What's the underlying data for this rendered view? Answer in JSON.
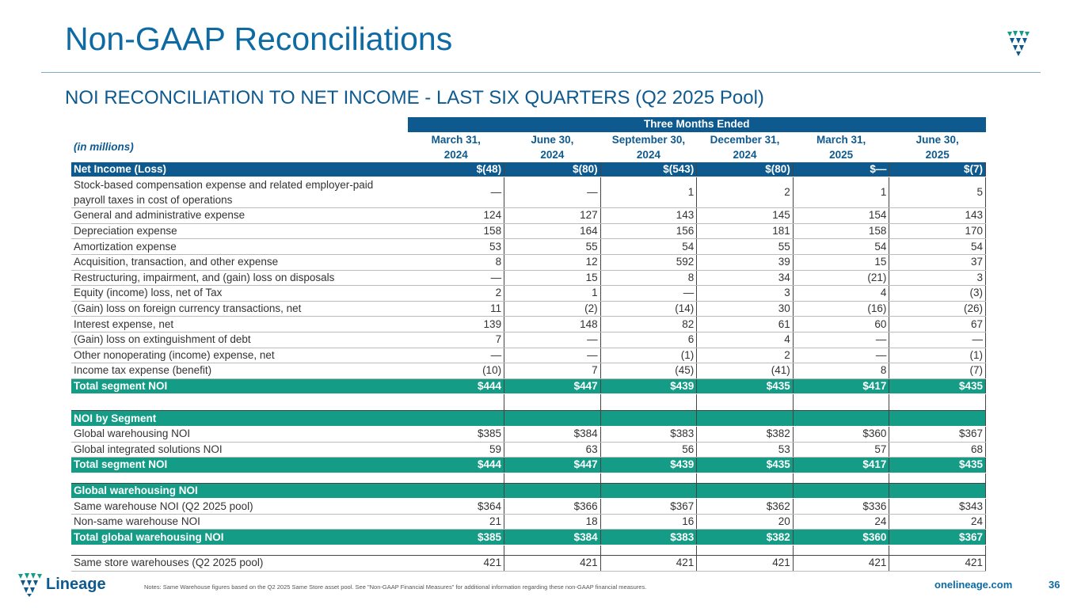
{
  "header": {
    "title": "Non-GAAP Reconciliations",
    "subtitle": "NOI RECONCILIATION TO NET INCOME - LAST SIX QUARTERS (Q2 2025 Pool)"
  },
  "table": {
    "group_header": "Three Months Ended",
    "unit_label": "(in millions)",
    "columns": [
      [
        "March 31,",
        "2024"
      ],
      [
        "June 30,",
        "2024"
      ],
      [
        "September 30,",
        "2024"
      ],
      [
        "December 31,",
        "2024"
      ],
      [
        "March 31,",
        "2025"
      ],
      [
        "June 30,",
        "2025"
      ]
    ],
    "blocks": [
      {
        "rows": [
          {
            "label": "Net Income (Loss)",
            "values": [
              "$(48)",
              "$(80)",
              "$(543)",
              "$(80)",
              "$—",
              "$(7)"
            ],
            "fill": "#0e5a8f"
          },
          {
            "label": "Stock-based compensation expense and related employer-paid payroll taxes in cost of operations",
            "values": [
              "—",
              "—",
              "1",
              "2",
              "1",
              "5"
            ]
          },
          {
            "label": "General and administrative expense",
            "values": [
              "124",
              "127",
              "143",
              "145",
              "154",
              "143"
            ]
          },
          {
            "label": "Depreciation expense",
            "values": [
              "158",
              "164",
              "156",
              "181",
              "158",
              "170"
            ]
          },
          {
            "label": "Amortization expense",
            "values": [
              "53",
              "55",
              "54",
              "55",
              "54",
              "54"
            ]
          },
          {
            "label": "Acquisition, transaction, and other expense",
            "values": [
              "8",
              "12",
              "592",
              "39",
              "15",
              "37"
            ]
          },
          {
            "label": "Restructuring, impairment, and (gain) loss on disposals",
            "values": [
              "—",
              "15",
              "8",
              "34",
              "(21)",
              "3"
            ]
          },
          {
            "label": "Equity (income) loss, net of Tax",
            "values": [
              "2",
              "1",
              "—",
              "3",
              "4",
              "(3)"
            ]
          },
          {
            "label": "(Gain) loss on foreign currency transactions, net",
            "values": [
              "11",
              "(2)",
              "(14)",
              "30",
              "(16)",
              "(26)"
            ]
          },
          {
            "label": "Interest expense, net",
            "values": [
              "139",
              "148",
              "82",
              "61",
              "60",
              "67"
            ]
          },
          {
            "label": "(Gain) loss on extinguishment of debt",
            "values": [
              "7",
              "—",
              "6",
              "4",
              "—",
              "—"
            ]
          },
          {
            "label": "Other nonoperating (income) expense, net",
            "values": [
              "—",
              "—",
              "(1)",
              "2",
              "—",
              "(1)"
            ]
          },
          {
            "label": "Income tax expense (benefit)",
            "values": [
              "(10)",
              "7",
              "(45)",
              "(41)",
              "8",
              "(7)"
            ]
          },
          {
            "label": "Total segment NOI",
            "values": [
              "$444",
              "$447",
              "$439",
              "$435",
              "$417",
              "$435"
            ],
            "fill": "#149c86"
          }
        ]
      },
      {
        "rows": [
          {
            "label": "NOI by Segment",
            "fill": "#149c86"
          },
          {
            "label": "Global warehousing NOI",
            "values": [
              "$385",
              "$384",
              "$383",
              "$382",
              "$360",
              "$367"
            ]
          },
          {
            "label": "Global integrated solutions NOI",
            "values": [
              "59",
              "63",
              "56",
              "53",
              "57",
              "68"
            ]
          },
          {
            "label": "Total segment NOI",
            "values": [
              "$444",
              "$447",
              "$439",
              "$435",
              "$417",
              "$435"
            ],
            "fill": "#149c86"
          }
        ]
      },
      {
        "rows": [
          {
            "label": "Global warehousing NOI",
            "fill": "#149c86"
          },
          {
            "label": "Same warehouse NOI (Q2 2025 pool)",
            "values": [
              "$364",
              "$366",
              "$367",
              "$362",
              "$336",
              "$343"
            ]
          },
          {
            "label": "Non-same warehouse NOI",
            "values": [
              "21",
              "18",
              "16",
              "20",
              "24",
              "24"
            ]
          },
          {
            "label": "Total global warehousing NOI",
            "values": [
              "$385",
              "$384",
              "$383",
              "$382",
              "$360",
              "$367"
            ],
            "fill": "#149c86"
          }
        ]
      },
      {
        "rows": [
          {
            "label": "Same store warehouses (Q2 2025 pool)",
            "values": [
              "421",
              "421",
              "421",
              "421",
              "421",
              "421"
            ]
          }
        ]
      }
    ]
  },
  "footer": {
    "logo": "Lineage",
    "notes": "Notes: Same Warehouse figures based on the Q2 2025 Same Store asset pool. See \"Non-GAAP Financial Measures\" for additional information regarding these non-GAAP financial measures.",
    "website": "onelineage.com",
    "page": "36"
  }
}
